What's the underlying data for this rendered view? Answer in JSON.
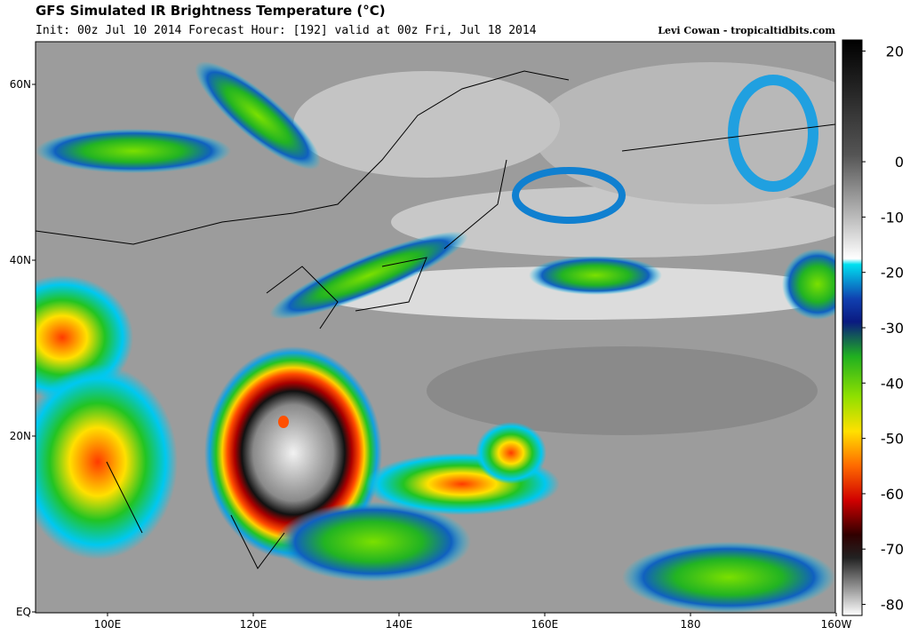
{
  "header": {
    "title": "GFS Simulated IR Brightness Temperature (°C)",
    "subtitle": "Init: 00z Jul 10 2014 Forecast Hour: [192] valid at 00z Fri, Jul 18 2014",
    "credit": "Levi Cowan - tropicaltidbits.com"
  },
  "map": {
    "lat_labels": [
      "60N",
      "40N",
      "20N",
      "EQ"
    ],
    "lon_labels": [
      "100E",
      "120E",
      "140E",
      "160E",
      "180",
      "160W"
    ]
  },
  "colorbar": {
    "ticks": [
      20,
      0,
      -10,
      -20,
      -30,
      -40,
      -50,
      -60,
      -70,
      -80
    ],
    "range": [
      22,
      -82
    ]
  }
}
